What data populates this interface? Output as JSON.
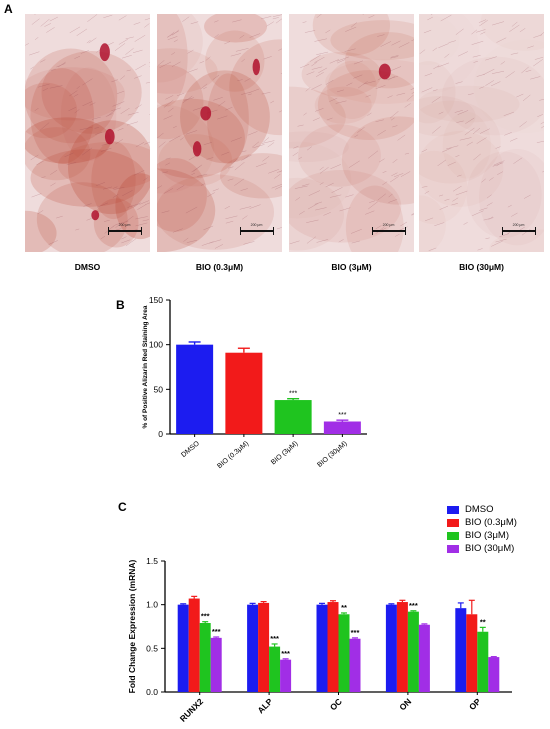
{
  "panel_a": {
    "label": "A",
    "images": [
      {
        "caption": "DMSO",
        "scale_label": "200 μm",
        "stain_level": 1.0
      },
      {
        "caption": "BIO (0.3μM)",
        "scale_label": "200 μm",
        "stain_level": 0.8
      },
      {
        "caption": "BIO (3μM)",
        "scale_label": "200 μm",
        "stain_level": 0.45
      },
      {
        "caption": "BIO (30μM)",
        "scale_label": "200 μm",
        "stain_level": 0.15
      }
    ]
  },
  "colors": {
    "DMSO": "#1c1cf0",
    "BIO (0.3μM)": "#f21a1a",
    "BIO (3μM)": "#1fc41f",
    "BIO (30μM)": "#a12ee6"
  },
  "chart_data": [
    {
      "panel": "B",
      "type": "bar",
      "categories": [
        "DMSO",
        "BIO (0.3μM)",
        "BIO (3μM)",
        "BIO (30μM)"
      ],
      "values": [
        100,
        91,
        38,
        14
      ],
      "errors": [
        3,
        5,
        1.5,
        1.5
      ],
      "significance": [
        "",
        "",
        "***",
        "***"
      ],
      "ylabel": "% of Positive Alizarin Red Staining Area",
      "ylim": [
        0,
        150
      ],
      "yticks": [
        0,
        50,
        100,
        150
      ],
      "grid": false
    },
    {
      "panel": "C",
      "type": "bar",
      "categories": [
        "RUNX2",
        "ALP",
        "OC",
        "ON",
        "OP"
      ],
      "series": [
        {
          "name": "DMSO",
          "values": [
            1.0,
            1.0,
            1.0,
            1.0,
            0.96
          ],
          "errors": [
            0.01,
            0.015,
            0.015,
            0.01,
            0.06
          ],
          "significance": [
            "",
            "",
            "",
            "",
            ""
          ]
        },
        {
          "name": "BIO (0.3μM)",
          "values": [
            1.07,
            1.02,
            1.03,
            1.03,
            0.89
          ],
          "errors": [
            0.025,
            0.015,
            0.015,
            0.02,
            0.16
          ],
          "significance": [
            "",
            "",
            "",
            "",
            ""
          ]
        },
        {
          "name": "BIO (3μM)",
          "values": [
            0.79,
            0.52,
            0.89,
            0.92,
            0.69
          ],
          "errors": [
            0.015,
            0.03,
            0.015,
            0.01,
            0.05
          ],
          "significance": [
            "***",
            "***",
            "**",
            "***",
            "**"
          ]
        },
        {
          "name": "BIO (30μM)",
          "values": [
            0.62,
            0.37,
            0.61,
            0.77,
            0.4
          ],
          "errors": [
            0.01,
            0.01,
            0.01,
            0.01,
            0.005
          ],
          "significance": [
            "***",
            "***",
            "***",
            "",
            ""
          ]
        }
      ],
      "ylabel": "Fold Change Expression (mRNA)",
      "ylim": [
        0,
        1.5
      ],
      "yticks": [
        "0.0",
        "0.5",
        "1.0",
        "1.5"
      ],
      "legend_position": "top-right",
      "grid": false
    }
  ]
}
